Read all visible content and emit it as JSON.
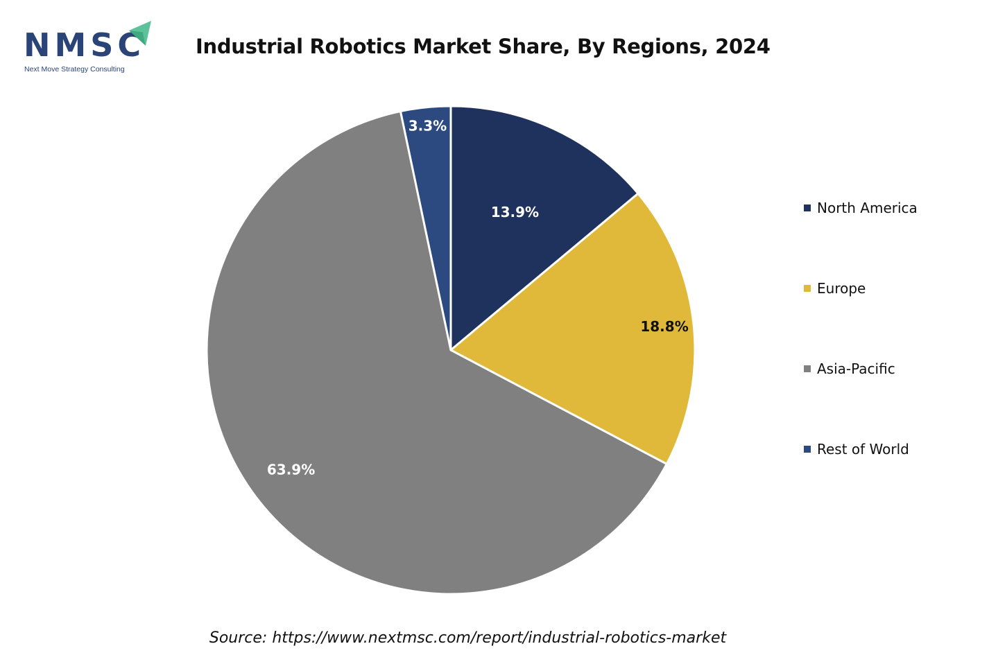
{
  "logo": {
    "text": "NMSC",
    "subtitle": "Next Move Strategy Consulting",
    "colors": {
      "text": "#2a4478",
      "arrow": "#5cc29a"
    }
  },
  "chart_data": {
    "type": "pie",
    "title": "Industrial Robotics Market Share, By Regions, 2024",
    "categories": [
      "North America",
      "Europe",
      "Asia-Pacific",
      "Rest of World"
    ],
    "values": [
      13.9,
      18.8,
      63.9,
      3.3
    ],
    "labels": [
      "13.9%",
      "18.8%",
      "63.9%",
      "3.3%"
    ],
    "colors": [
      "#1f325e",
      "#e0b93b",
      "#808080",
      "#2c4a80"
    ],
    "label_colors": [
      "#ffffff",
      "#111111",
      "#ffffff",
      "#ffffff"
    ],
    "start_angle": "12 o'clock",
    "direction": "clockwise",
    "legend_position": "right",
    "unit": "%"
  },
  "source": "Source: https://www.nextmsc.com/report/industrial-robotics-market"
}
